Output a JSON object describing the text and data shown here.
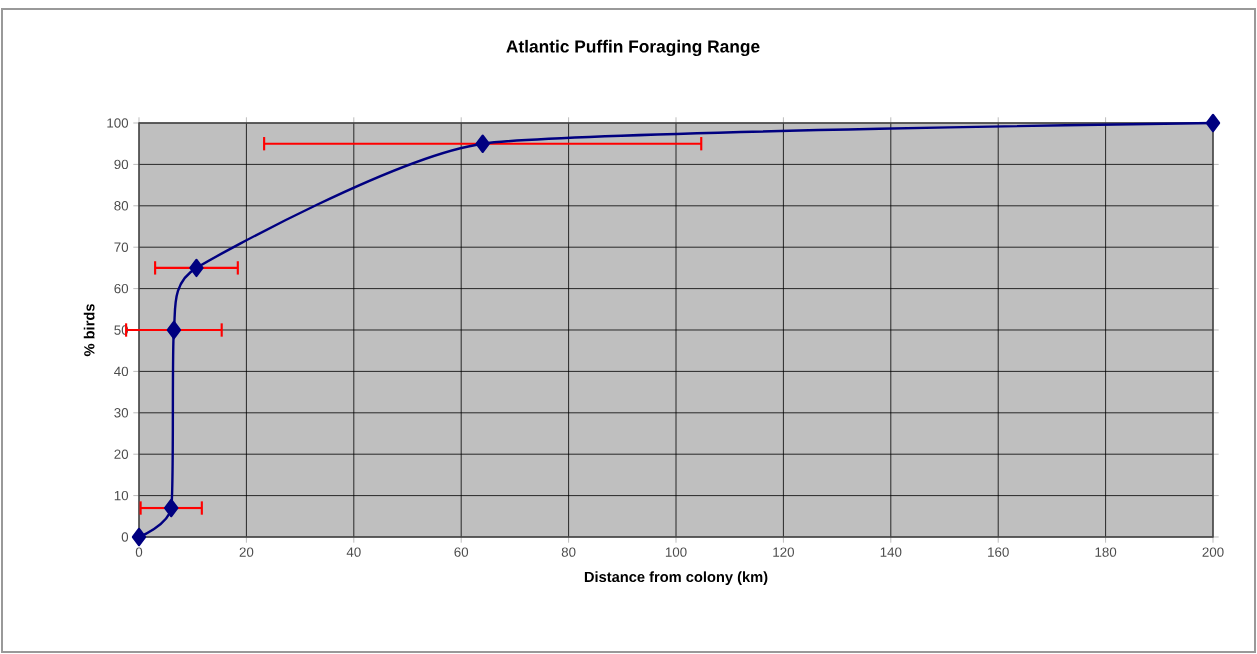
{
  "chart_data": {
    "type": "line",
    "title": "Atlantic Puffin Foraging Range",
    "xlabel": "Distance from colony (km)",
    "ylabel": "% birds",
    "x": [
      0,
      6,
      6.5,
      10.7,
      64,
      200
    ],
    "series": [
      {
        "color": "#000080",
        "values": [
          0,
          7,
          50,
          65,
          95,
          100
        ],
        "xerrors": [
          null,
          5.7,
          8.9,
          7.7,
          40.7,
          null
        ]
      }
    ],
    "xlim": [
      0,
      200
    ],
    "xticks": [
      0,
      20,
      40,
      60,
      80,
      100,
      120,
      140,
      160,
      180,
      200
    ],
    "ylim": [
      0,
      100
    ],
    "yticks": [
      0,
      10,
      20,
      30,
      40,
      50,
      60,
      70,
      80,
      90,
      100
    ],
    "grid": true,
    "marker": "diamond",
    "line_style": "solid"
  }
}
